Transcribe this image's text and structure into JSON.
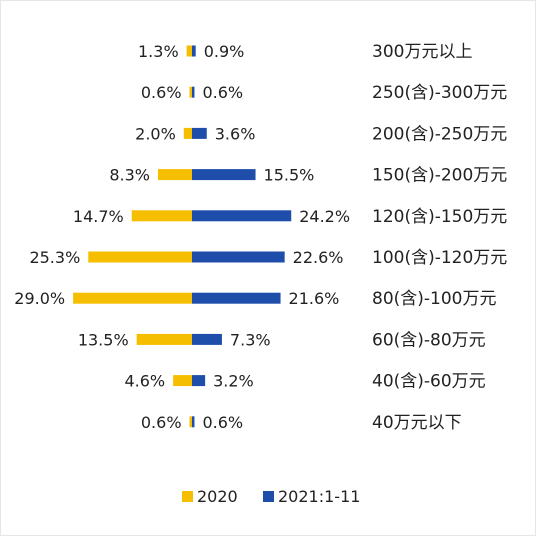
{
  "chart_data": {
    "type": "bar",
    "orientation": "horizontal-butterfly",
    "categories": [
      "300万元以上",
      "250(含)-300万元",
      "200(含)-250万元",
      "150(含)-200万元",
      "120(含)-150万元",
      "100(含)-120万元",
      "80(含)-100万元",
      "60(含)-80万元",
      "40(含)-60万元",
      "40万元以下"
    ],
    "series": [
      {
        "name": "2020",
        "color": "#F6BE00",
        "side": "left",
        "values": [
          1.3,
          0.6,
          2.0,
          8.3,
          14.7,
          25.3,
          29.0,
          13.5,
          4.6,
          0.6
        ],
        "labels": [
          "1.3%",
          "0.6%",
          "2.0%",
          "8.3%",
          "14.7%",
          "25.3%",
          "29.0%",
          "13.5%",
          "4.6%",
          "0.6%"
        ]
      },
      {
        "name": "2021:1-11",
        "color": "#1F4EAA",
        "side": "right",
        "values": [
          0.9,
          0.6,
          3.6,
          15.5,
          24.2,
          22.6,
          21.6,
          7.3,
          3.2,
          0.6
        ],
        "labels": [
          "0.9%",
          "0.6%",
          "3.6%",
          "15.5%",
          "24.2%",
          "22.6%",
          "21.6%",
          "7.3%",
          "3.2%",
          "0.6%"
        ]
      }
    ],
    "legend_position": "bottom",
    "grid": false,
    "unit": "%"
  }
}
